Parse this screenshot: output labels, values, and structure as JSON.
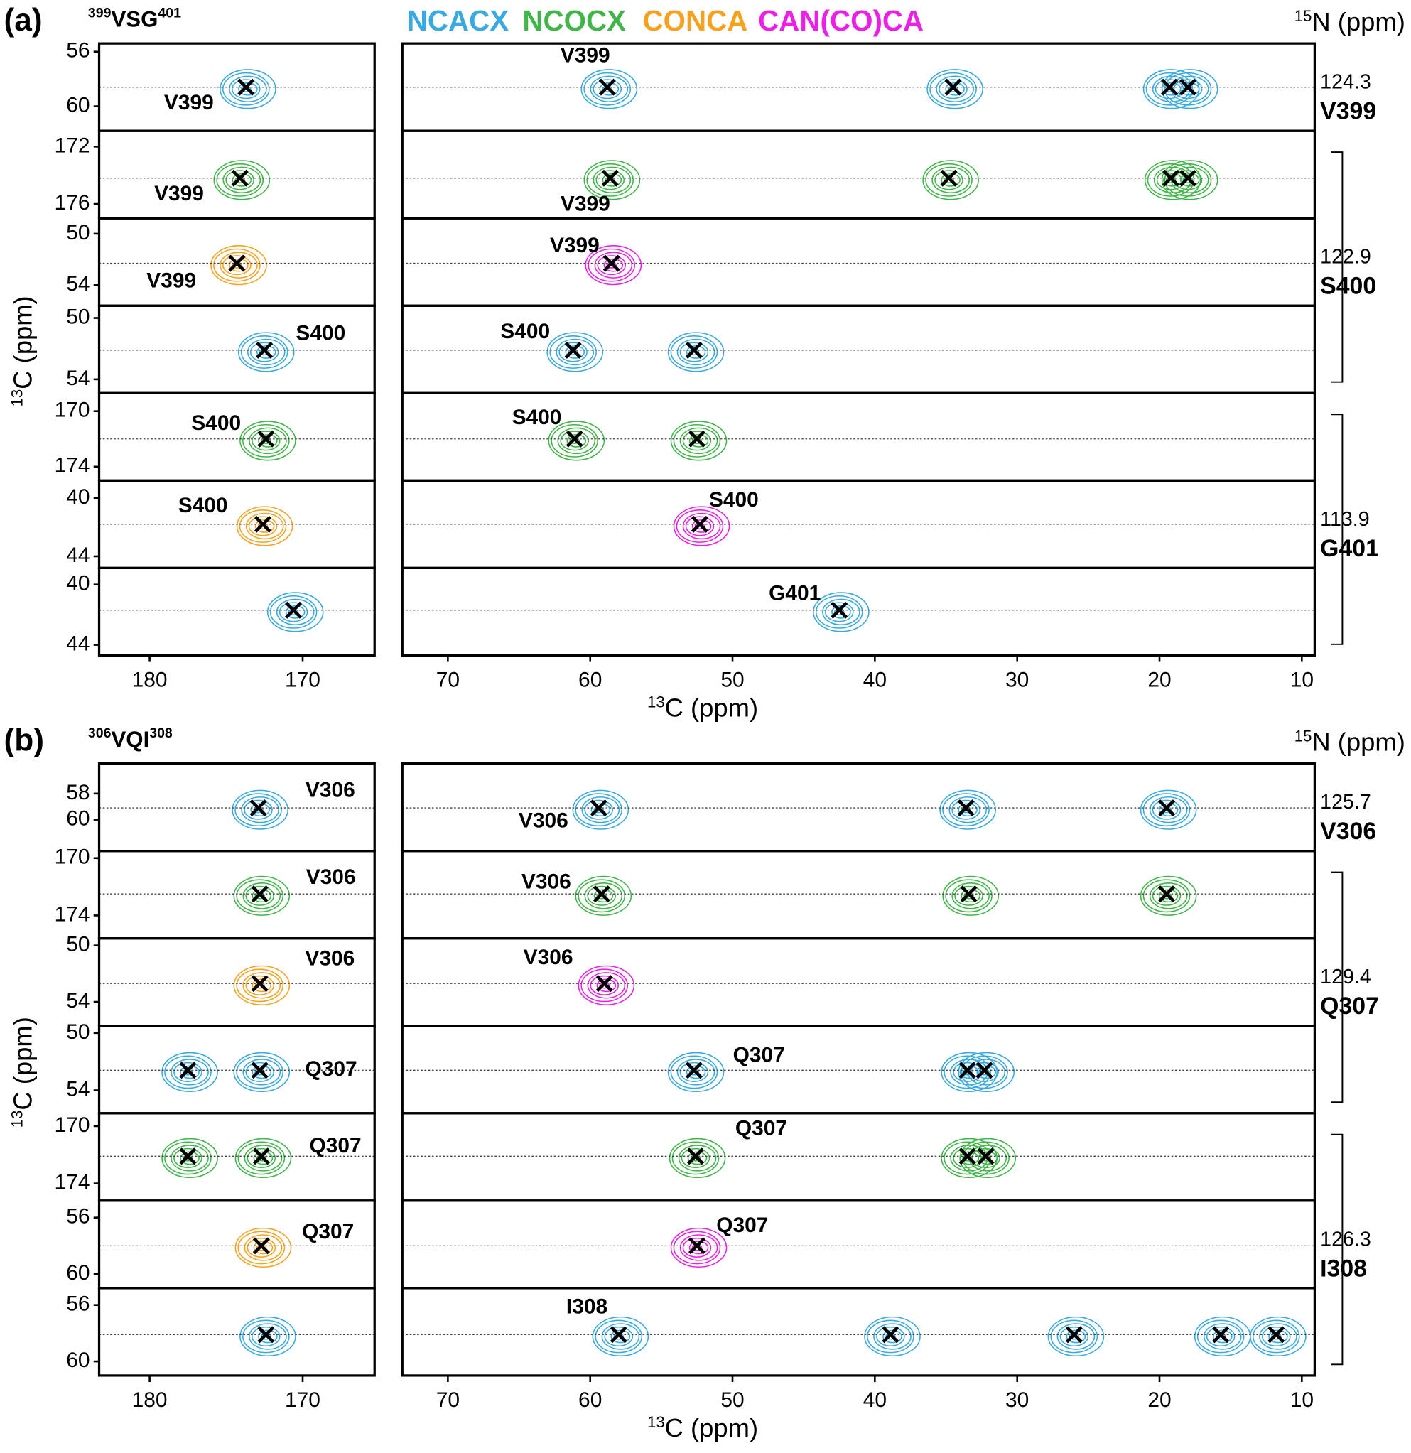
{
  "chart_data": {
    "type": "nmr-strips",
    "spectra": [
      {
        "name": "NCACX",
        "color": "#39a9e1"
      },
      {
        "name": "NCOCX",
        "color": "#41b549"
      },
      {
        "name": "CONCA",
        "color": "#f8a11f"
      },
      {
        "name": "CAN(CO)CA",
        "color": "#ee1ee9"
      }
    ],
    "panels": [
      {
        "label": "(a)",
        "title_pre": "399",
        "title": "VSG",
        "title_post": "401",
        "n_axis_sup": "15",
        "n_axis": "N (ppm)",
        "c_axis_sup": "13",
        "c_axis": "C (ppm)",
        "left_xlim": [
          183.3,
          165.3
        ],
        "left_xticks": [
          180,
          170
        ],
        "right_xlim": [
          73.2,
          9.1
        ],
        "right_xticks": [
          70,
          60,
          50,
          40,
          30,
          20,
          10
        ],
        "rows": [
          {
            "ylim": [
              61.8,
              55.4
            ],
            "yticks": [
              56,
              60
            ],
            "y": 58.6,
            "left": {
              "series": 0,
              "peaks": [
                173.7
              ],
              "label": "V399"
            },
            "right": {
              "series": 0,
              "peaks": [
                58.8,
                34.5,
                19.3,
                18.0
              ],
              "label": "V399"
            },
            "n_shift": 124.3,
            "residue": "V399"
          },
          {
            "ylim": [
              177.0,
              170.9
            ],
            "yticks": [
              172,
              176
            ],
            "y": 174.2,
            "left": {
              "series": 1,
              "peaks": [
                174.1
              ],
              "label": "V399"
            },
            "right": {
              "series": 1,
              "peaks": [
                58.6,
                34.8,
                19.2,
                18.0
              ],
              "label": "V399"
            }
          },
          {
            "ylim": [
              55.6,
              48.8
            ],
            "yticks": [
              50,
              54
            ],
            "y": 52.3,
            "left": {
              "series": 2,
              "peaks": [
                174.3
              ],
              "label": "V399"
            },
            "right": {
              "series": 3,
              "peaks": [
                58.5
              ],
              "label": "V399"
            },
            "n_shift": 122.9,
            "residue": "S400"
          },
          {
            "ylim": [
              54.9,
              49.2
            ],
            "yticks": [
              50,
              54
            ],
            "y": 52.1,
            "left": {
              "series": 0,
              "peaks": [
                172.5
              ],
              "label": "S400"
            },
            "right": {
              "series": 0,
              "peaks": [
                61.2,
                52.7
              ],
              "label": "S400"
            }
          },
          {
            "ylim": [
              175.0,
              168.7
            ],
            "yticks": [
              170,
              174
            ],
            "y": 172.0,
            "left": {
              "series": 1,
              "peaks": [
                172.4
              ],
              "label": "S400"
            },
            "right": {
              "series": 1,
              "peaks": [
                61.1,
                52.5
              ],
              "label": "S400"
            }
          },
          {
            "ylim": [
              44.8,
              38.8
            ],
            "yticks": [
              40,
              44
            ],
            "y": 41.8,
            "left": {
              "series": 2,
              "peaks": [
                172.6
              ],
              "label": "S400"
            },
            "right": {
              "series": 3,
              "peaks": [
                52.3
              ],
              "label": "S400"
            },
            "n_shift": 113.9,
            "residue": "G401"
          },
          {
            "ylim": [
              44.7,
              38.9
            ],
            "yticks": [
              40,
              44
            ],
            "y": 41.7,
            "left": {
              "series": 0,
              "peaks": [
                170.6
              ]
            },
            "right": {
              "series": 0,
              "peaks": [
                42.5
              ],
              "label": "G401"
            }
          }
        ]
      },
      {
        "label": "(b)",
        "title_pre": "306",
        "title": "VQI",
        "title_post": "308",
        "n_axis_sup": "15",
        "n_axis": "N (ppm)",
        "c_axis_sup": "13",
        "c_axis": "C (ppm)",
        "left_xlim": [
          183.3,
          165.3
        ],
        "left_xticks": [
          180,
          170
        ],
        "right_xlim": [
          73.2,
          9.1
        ],
        "right_xticks": [
          70,
          60,
          50,
          40,
          30,
          20,
          10
        ],
        "rows": [
          {
            "ylim": [
              62.4,
              55.7
            ],
            "yticks": [
              58,
              60
            ],
            "y": 59.1,
            "left": {
              "series": 0,
              "peaks": [
                172.9
              ],
              "label": "V306"
            },
            "right": {
              "series": 0,
              "peaks": [
                59.4,
                33.6,
                19.5
              ],
              "label": "V306"
            },
            "n_shift": 125.7,
            "residue": "V306"
          },
          {
            "ylim": [
              175.6,
              169.5
            ],
            "yticks": [
              170,
              174
            ],
            "y": 172.5,
            "left": {
              "series": 1,
              "peaks": [
                172.8
              ],
              "label": "V306"
            },
            "right": {
              "series": 1,
              "peaks": [
                59.2,
                33.4,
                19.5
              ],
              "label": "V306"
            }
          },
          {
            "ylim": [
              55.7,
              49.5
            ],
            "yticks": [
              50,
              54
            ],
            "y": 52.7,
            "left": {
              "series": 2,
              "peaks": [
                172.8
              ],
              "label": "V306"
            },
            "right": {
              "series": 3,
              "peaks": [
                59.0
              ],
              "label": "V306"
            },
            "n_shift": 129.4,
            "residue": "Q307"
          },
          {
            "ylim": [
              55.6,
              49.5
            ],
            "yticks": [
              50,
              54
            ],
            "y": 52.6,
            "left": {
              "series": 0,
              "peaks": [
                172.8,
                177.5
              ],
              "label": "Q307"
            },
            "right": {
              "series": 0,
              "peaks": [
                52.7,
                33.5,
                32.3
              ],
              "label": "Q307"
            }
          },
          {
            "ylim": [
              175.2,
              169.1
            ],
            "yticks": [
              170,
              174
            ],
            "y": 172.1,
            "left": {
              "series": 1,
              "peaks": [
                172.7,
                177.5
              ],
              "label": "Q307"
            },
            "right": {
              "series": 1,
              "peaks": [
                52.6,
                33.5,
                32.2
              ],
              "label": "Q307"
            }
          },
          {
            "ylim": [
              61.0,
              54.8
            ],
            "yticks": [
              56,
              60
            ],
            "y": 58.0,
            "left": {
              "series": 2,
              "peaks": [
                172.7
              ],
              "label": "Q307"
            },
            "right": {
              "series": 3,
              "peaks": [
                52.5
              ],
              "label": "Q307"
            },
            "n_shift": 126.3,
            "residue": "I308"
          },
          {
            "ylim": [
              61.0,
              54.8
            ],
            "yticks": [
              56,
              60
            ],
            "y": 58.1,
            "left": {
              "series": 0,
              "peaks": [
                172.4
              ]
            },
            "right": {
              "series": 0,
              "peaks": [
                58.0,
                38.9,
                26.0,
                15.7,
                11.8
              ],
              "label": "I308"
            }
          }
        ]
      }
    ]
  }
}
